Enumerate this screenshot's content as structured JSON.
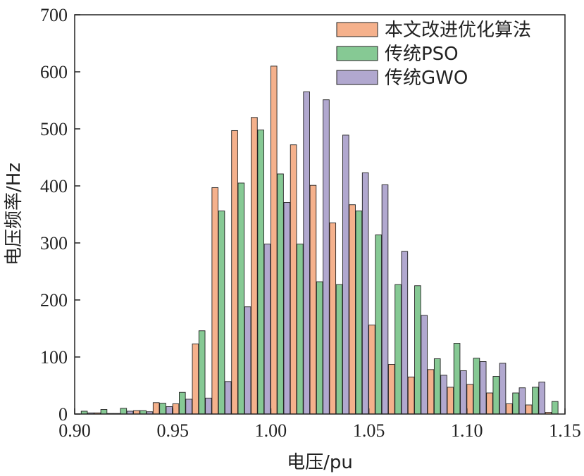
{
  "chart_data": {
    "type": "bar",
    "xlabel": "电压/pu",
    "ylabel": "电压频率/Hz",
    "xlim": [
      0.9,
      1.15
    ],
    "ylim": [
      0,
      700
    ],
    "x_ticks": [
      "0.90",
      "0.95",
      "1.00",
      "1.05",
      "1.10",
      "1.15"
    ],
    "y_ticks": [
      "0",
      "100",
      "200",
      "300",
      "400",
      "500",
      "600",
      "700"
    ],
    "grid": false,
    "legend_position": "top-right",
    "bin_centers": [
      0.905,
      0.915,
      0.925,
      0.935,
      0.945,
      0.955,
      0.965,
      0.975,
      0.985,
      0.995,
      1.005,
      1.015,
      1.025,
      1.035,
      1.045,
      1.055,
      1.065,
      1.075,
      1.085,
      1.095,
      1.105,
      1.115,
      1.125,
      1.135,
      1.145,
      1.155
    ],
    "series": [
      {
        "name": "本文改进优化算法",
        "color": "#f5b18c",
        "values": [
          0,
          2,
          1,
          6,
          20,
          18,
          123,
          397,
          497,
          520,
          610,
          472,
          401,
          335,
          367,
          156,
          87,
          65,
          78,
          47,
          52,
          37,
          18,
          16,
          3,
          0
        ]
      },
      {
        "name": "传统PSO",
        "color": "#86c994",
        "values": [
          5,
          8,
          10,
          6,
          19,
          38,
          146,
          356,
          405,
          498,
          421,
          298,
          232,
          227,
          356,
          314,
          227,
          225,
          97,
          124,
          98,
          66,
          37,
          47,
          22,
          0
        ]
      },
      {
        "name": "传统GWO",
        "color": "#b1a8cf",
        "values": [
          2,
          1,
          5,
          4,
          13,
          26,
          28,
          57,
          188,
          298,
          371,
          565,
          551,
          489,
          423,
          402,
          285,
          173,
          68,
          76,
          92,
          89,
          46,
          56,
          26,
          0
        ]
      }
    ]
  }
}
